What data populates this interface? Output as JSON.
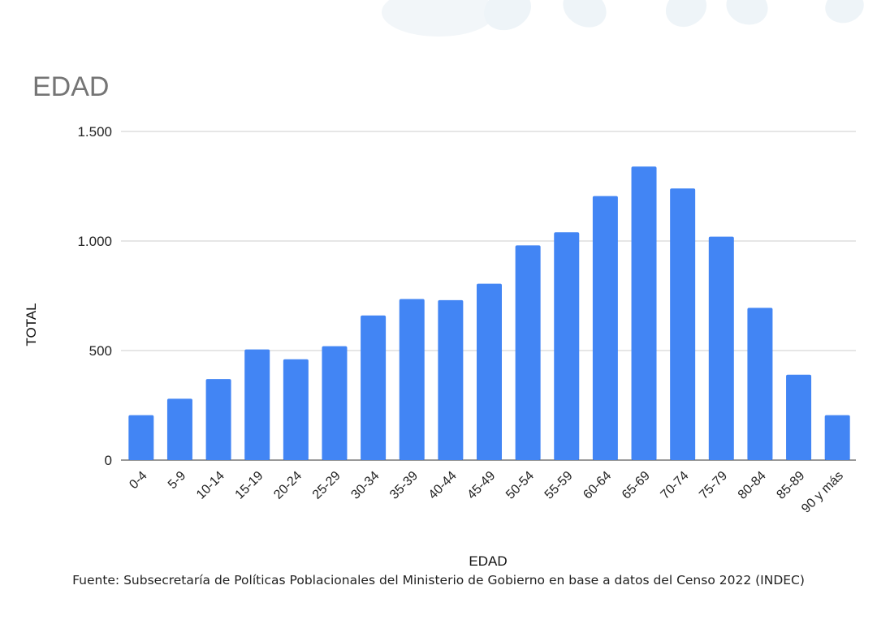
{
  "title": "EDAD",
  "source": "Fuente: Subsecretaría de Políticas Poblacionales del Ministerio de Gobierno en base a datos del Censo 2022 (INDEC)",
  "colors": {
    "bar": "#4285F4",
    "grid": "#cccccc",
    "decor": "#eef4f8"
  },
  "chart_data": {
    "type": "bar",
    "title": "EDAD",
    "xlabel": "EDAD",
    "ylabel": "TOTAL",
    "ylim": [
      0,
      1500
    ],
    "yticks": [
      0,
      500,
      1000,
      1500
    ],
    "ytick_labels": [
      "0",
      "500",
      "1.000",
      "1.500"
    ],
    "grid": true,
    "legend": "none",
    "categories": [
      "0-4",
      "5-9",
      "10-14",
      "15-19",
      "20-24",
      "25-29",
      "30-34",
      "35-39",
      "40-44",
      "45-49",
      "50-54",
      "55-59",
      "60-64",
      "65-69",
      "70-74",
      "75-79",
      "80-84",
      "85-89",
      "90 y más"
    ],
    "values": [
      205,
      280,
      370,
      505,
      460,
      520,
      660,
      735,
      730,
      805,
      980,
      1040,
      1205,
      1340,
      1240,
      1020,
      695,
      390,
      205
    ]
  }
}
